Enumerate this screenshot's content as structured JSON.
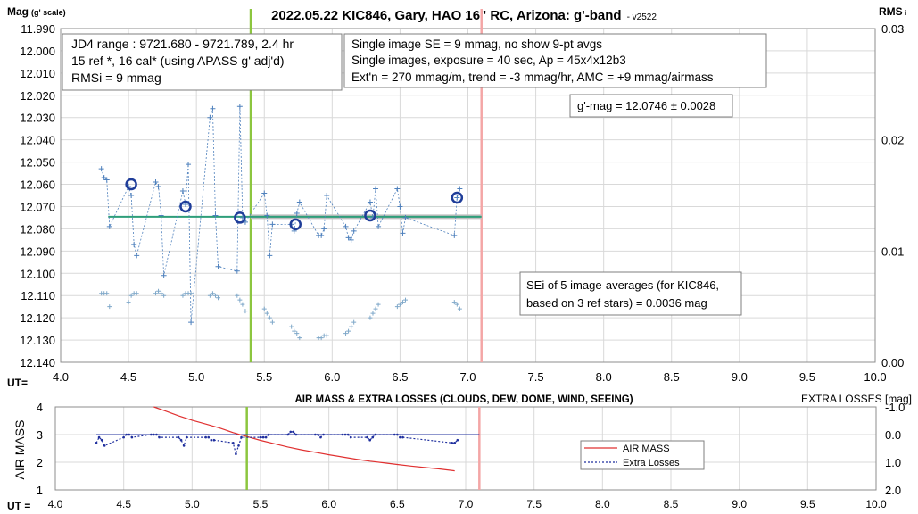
{
  "colors": {
    "scatter": "#4f81bd",
    "ref_scatter": "#7fa8c9",
    "avg_circle": "#1f3d99",
    "fit_line": "#2e9e7a",
    "fit_shadow": "#bfbfbf",
    "ingress_line": "#8cc63f",
    "egress_line": "#f4a6a6",
    "airmass": "#e03030",
    "losses": "#1f2f9e"
  },
  "chart_data": [
    {
      "type": "scatter",
      "title": "2022.05.22 KIC846, Gary, HAO 16\" RC, Arizona: g'-band",
      "version": "- v2522",
      "ylabel": "Mag",
      "ylabel_note": "(g' scale)",
      "y2label": "RMS",
      "y2label_sub": "i",
      "xlabel": "UT=",
      "xlim": [
        4.0,
        10.0
      ],
      "ylim": [
        12.14,
        11.99
      ],
      "y2lim": [
        0.0,
        0.03
      ],
      "x_ticks": [
        "4.0",
        "4.5",
        "5.0",
        "5.5",
        "6.0",
        "6.5",
        "7.0",
        "7.5",
        "8.0",
        "8.5",
        "9.0",
        "9.5",
        "10.0"
      ],
      "y_ticks": [
        "11.990",
        "12.000",
        "12.010",
        "12.020",
        "12.030",
        "12.040",
        "12.050",
        "12.060",
        "12.070",
        "12.080",
        "12.090",
        "12.100",
        "12.110",
        "12.120",
        "12.130",
        "12.140"
      ],
      "y2_ticks": [
        "0.03",
        "0.02",
        "0.01",
        "0.00"
      ],
      "grid": true,
      "ingress_ut": 5.4,
      "egress_ut": 7.1,
      "fit": {
        "x": [
          4.35,
          7.1
        ],
        "y": 12.0746
      },
      "annotations": [
        {
          "lines": [
            "JD4 range : 9721.680 - 9721.789,  2.4 hr",
            "15 ref *, 16 cal* (using APASS g' adj'd)",
            "RMSi = 9 mmag"
          ]
        },
        {
          "lines": [
            "Single image SE = 9 mmag, no show  9-pt avgs",
            "Single images, exposure = 40 sec, Ap = 45x4x12b3",
            "Ext'n = 270 mmag/m, trend = -3 mmag/hr, AMC = +9 mmag/airmass"
          ]
        },
        {
          "lines": [
            "g'-mag = 12.0746 ± 0.0028"
          ]
        },
        {
          "lines": [
            "SEi of 5 image-averages (for KIC846,",
            "based on 3 ref stars) = 0.0036 mag"
          ]
        }
      ],
      "series": [
        {
          "role": "single_images",
          "x": [
            4.3,
            4.32,
            4.34,
            4.36,
            4.5,
            4.52,
            4.54,
            4.56,
            4.7,
            4.72,
            4.74,
            4.76,
            4.9,
            4.92,
            4.94,
            4.96,
            5.1,
            5.12,
            5.14,
            5.16,
            5.3,
            5.32,
            5.34,
            5.36,
            5.5,
            5.52,
            5.54,
            5.56,
            5.7,
            5.72,
            5.74,
            5.76,
            5.9,
            5.92,
            5.94,
            5.96,
            6.1,
            6.12,
            6.14,
            6.16,
            6.28,
            6.3,
            6.32,
            6.34,
            6.48,
            6.5,
            6.52,
            6.54,
            6.9,
            6.92,
            6.94
          ],
          "y": [
            12.053,
            12.057,
            12.058,
            12.079,
            12.061,
            12.065,
            12.087,
            12.092,
            12.059,
            12.061,
            12.074,
            12.101,
            12.063,
            12.069,
            12.051,
            12.122,
            12.03,
            12.026,
            12.074,
            12.097,
            12.099,
            12.025,
            12.075,
            12.077,
            12.064,
            12.074,
            12.092,
            12.078,
            12.078,
            12.081,
            12.073,
            12.068,
            12.083,
            12.083,
            12.08,
            12.065,
            12.079,
            12.084,
            12.085,
            12.081,
            12.068,
            12.075,
            12.062,
            12.079,
            12.062,
            12.07,
            12.082,
            12.075,
            12.083,
            12.066,
            12.062
          ]
        },
        {
          "role": "ref_star_rms",
          "x": [
            4.3,
            4.32,
            4.34,
            4.36,
            4.5,
            4.52,
            4.54,
            4.56,
            4.7,
            4.72,
            4.74,
            4.76,
            4.9,
            4.92,
            4.94,
            4.96,
            5.1,
            5.12,
            5.14,
            5.16,
            5.3,
            5.32,
            5.34,
            5.36,
            5.5,
            5.52,
            5.54,
            5.56,
            5.7,
            5.72,
            5.74,
            5.76,
            5.9,
            5.92,
            5.94,
            5.96,
            6.1,
            6.12,
            6.14,
            6.16,
            6.28,
            6.3,
            6.32,
            6.34,
            6.48,
            6.5,
            6.52,
            6.54,
            6.9,
            6.92,
            6.94
          ],
          "y": [
            12.109,
            12.109,
            12.109,
            12.115,
            12.113,
            12.11,
            12.109,
            12.109,
            12.109,
            12.108,
            12.109,
            12.11,
            12.11,
            12.109,
            12.109,
            12.109,
            12.11,
            12.109,
            12.11,
            12.111,
            12.11,
            12.112,
            12.114,
            12.117,
            12.116,
            12.118,
            12.12,
            12.122,
            12.124,
            12.126,
            12.127,
            12.129,
            12.129,
            12.129,
            12.128,
            12.128,
            12.127,
            12.126,
            12.124,
            12.122,
            12.12,
            12.118,
            12.116,
            12.114,
            12.115,
            12.114,
            12.113,
            12.112,
            12.113,
            12.114,
            12.116
          ]
        },
        {
          "role": "five_image_averages",
          "x": [
            4.52,
            4.92,
            5.32,
            5.73,
            6.28,
            6.92
          ],
          "y": [
            12.06,
            12.07,
            12.075,
            12.078,
            12.074,
            12.066
          ]
        }
      ]
    },
    {
      "type": "line",
      "title": "AIR MASS & EXTRA LOSSES (CLOUDS, DEW, DOME, WIND, SEEING)",
      "ylabel": "AIR MASS",
      "y2label": "EXTRA LOSSES [mag]",
      "xlabel": "UT =",
      "xlim": [
        4.0,
        10.0
      ],
      "ylim": [
        1,
        4
      ],
      "y2lim": [
        2.0,
        -1.0
      ],
      "x_ticks": [
        "4.0",
        "4.5",
        "5.0",
        "5.5",
        "6.0",
        "6.5",
        "7.0",
        "7.5",
        "8.0",
        "8.5",
        "9.0",
        "9.5",
        "10.0"
      ],
      "y_ticks": [
        "4",
        "3",
        "2",
        "1"
      ],
      "y2_ticks": [
        "-1.0",
        "0.0",
        "1.0",
        "2.0"
      ],
      "grid": true,
      "ingress_ut": 5.4,
      "egress_ut": 7.1,
      "zero_line": {
        "x": [
          4.3,
          7.1
        ],
        "y": 0.0
      },
      "series": [
        {
          "name": "AIR MASS",
          "x": [
            4.72,
            4.8,
            4.9,
            5.0,
            5.1,
            5.2,
            5.3,
            5.4,
            5.5,
            5.6,
            5.7,
            5.8,
            5.9,
            6.0,
            6.1,
            6.2,
            6.3,
            6.4,
            6.5,
            6.6,
            6.7,
            6.8,
            6.92
          ],
          "y": [
            4.0,
            3.86,
            3.68,
            3.52,
            3.38,
            3.24,
            3.07,
            2.93,
            2.79,
            2.67,
            2.55,
            2.45,
            2.36,
            2.27,
            2.19,
            2.11,
            2.04,
            1.98,
            1.92,
            1.86,
            1.81,
            1.76,
            1.69
          ]
        },
        {
          "name": "Extra Losses",
          "x": [
            4.3,
            4.32,
            4.34,
            4.36,
            4.5,
            4.52,
            4.54,
            4.56,
            4.7,
            4.72,
            4.74,
            4.76,
            4.9,
            4.92,
            4.94,
            4.96,
            5.1,
            5.12,
            5.14,
            5.16,
            5.3,
            5.32,
            5.34,
            5.36,
            5.5,
            5.52,
            5.54,
            5.56,
            5.7,
            5.72,
            5.74,
            5.76,
            5.9,
            5.92,
            5.94,
            5.96,
            6.1,
            6.12,
            6.14,
            6.16,
            6.28,
            6.3,
            6.32,
            6.34,
            6.48,
            6.5,
            6.52,
            6.54,
            6.9,
            6.92,
            6.94
          ],
          "y": [
            0.3,
            0.1,
            0.2,
            0.4,
            0.1,
            0.0,
            0.0,
            0.1,
            0.0,
            0.0,
            0.0,
            0.1,
            0.1,
            0.2,
            0.4,
            0.1,
            0.1,
            0.1,
            0.2,
            0.2,
            0.3,
            0.7,
            0.4,
            0.1,
            0.1,
            0.1,
            0.1,
            0.0,
            0.0,
            -0.1,
            -0.1,
            0.0,
            0.0,
            0.0,
            0.1,
            0.0,
            0.0,
            0.0,
            0.0,
            0.1,
            0.1,
            0.2,
            0.1,
            0.0,
            0.0,
            0.0,
            0.1,
            0.1,
            0.3,
            0.3,
            0.2
          ]
        }
      ]
    }
  ]
}
